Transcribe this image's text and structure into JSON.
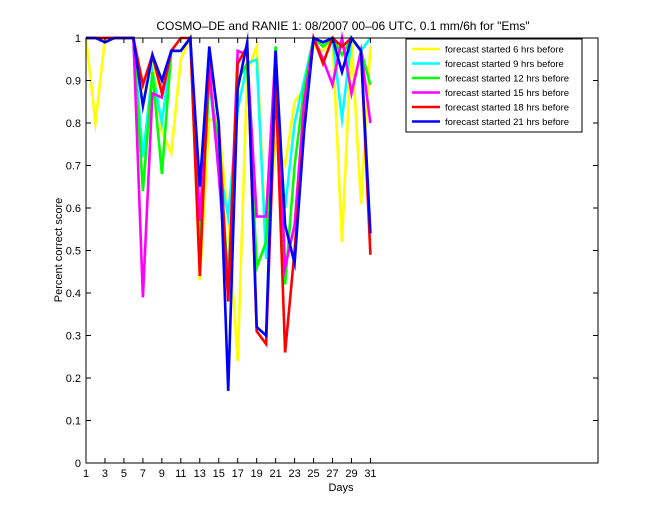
{
  "chart_data": {
    "type": "line",
    "title": "COSMO–DE and RANIE 1: 08/2007 00–06 UTC, 0.1 mm/6h for \"Ems\"",
    "xlabel": "Days",
    "ylabel": "Percent correct score",
    "xlim": [
      1,
      55
    ],
    "ylim": [
      0,
      1
    ],
    "x_ticks": [
      1,
      3,
      5,
      7,
      9,
      11,
      13,
      15,
      17,
      19,
      21,
      23,
      25,
      27,
      29,
      31
    ],
    "y_ticks": [
      0,
      0.1,
      0.2,
      0.3,
      0.4,
      0.5,
      0.6,
      0.7,
      0.8,
      0.9,
      1
    ],
    "x_tick_labels": [
      "1",
      "3",
      "5",
      "7",
      "9",
      "11",
      "13",
      "15",
      "17",
      "19",
      "21",
      "23",
      "25",
      "27",
      "29",
      "31"
    ],
    "y_tick_labels": [
      "0",
      "0.1",
      "0.2",
      "0.3",
      "0.4",
      "0.5",
      "0.6",
      "0.7",
      "0.8",
      "0.9",
      "1"
    ],
    "grid": false,
    "legend_position": "top-right",
    "x": [
      1,
      2,
      3,
      4,
      5,
      6,
      7,
      8,
      9,
      10,
      11,
      12,
      13,
      14,
      15,
      16,
      17,
      18,
      19,
      20,
      21,
      22,
      23,
      24,
      25,
      26,
      27,
      28,
      29,
      30,
      31
    ],
    "series": [
      {
        "name": "forecast started 6 hrs before",
        "color": "#ffff00",
        "values": [
          1,
          0.8,
          1,
          1,
          1,
          1,
          0.85,
          0.95,
          0.78,
          0.73,
          0.95,
          1,
          0.43,
          0.81,
          0.8,
          0.57,
          0.24,
          0.92,
          0.98,
          0.5,
          0.75,
          0.7,
          0.85,
          0.88,
          0.98,
          0.97,
          1,
          0.52,
          1,
          0.61,
          0.98
        ]
      },
      {
        "name": "forecast started 9 hrs before",
        "color": "#00ffff",
        "values": [
          1,
          1,
          1,
          1,
          1,
          1,
          0.72,
          0.92,
          0.8,
          0.97,
          0.97,
          1,
          0.5,
          0.9,
          0.7,
          0.58,
          0.83,
          0.94,
          0.95,
          0.48,
          0.87,
          0.6,
          0.8,
          0.9,
          1,
          0.99,
          1,
          0.81,
          1,
          0.97,
          1
        ]
      },
      {
        "name": "forecast started 12 hrs before",
        "color": "#00ff00",
        "values": [
          1,
          1,
          1,
          1,
          1,
          1,
          0.64,
          0.92,
          0.68,
          0.97,
          0.97,
          1,
          0.52,
          0.9,
          0.75,
          0.43,
          0.9,
          0.94,
          0.46,
          0.52,
          0.98,
          0.42,
          0.7,
          0.88,
          1,
          0.98,
          1,
          0.96,
          1,
          0.97,
          0.89
        ]
      },
      {
        "name": "forecast started 15 hrs before",
        "color": "#ff00ff",
        "values": [
          1,
          1,
          1,
          1,
          1,
          1,
          0.39,
          0.87,
          0.86,
          0.97,
          0.97,
          1,
          0.57,
          0.93,
          0.68,
          0.39,
          0.97,
          0.96,
          0.58,
          0.58,
          0.97,
          0.46,
          0.56,
          0.85,
          1,
          0.95,
          0.89,
          1,
          0.87,
          0.97,
          0.8
        ]
      },
      {
        "name": "forecast started 18 hrs before",
        "color": "#ff0000",
        "values": [
          1,
          1,
          1,
          1,
          1,
          1,
          0.89,
          0.96,
          0.87,
          0.97,
          1,
          1,
          0.44,
          0.97,
          0.8,
          0.38,
          0.94,
          0.98,
          0.31,
          0.28,
          0.9,
          0.26,
          0.5,
          0.79,
          1,
          0.94,
          1,
          0.98,
          1,
          0.97,
          0.49
        ]
      },
      {
        "name": "forecast started 21 hrs before",
        "color": "#0000ff",
        "values": [
          1,
          1,
          0.99,
          1,
          1,
          1,
          0.84,
          0.96,
          0.9,
          0.97,
          0.97,
          1,
          0.65,
          0.98,
          0.8,
          0.17,
          0.88,
          0.99,
          0.32,
          0.3,
          0.97,
          0.56,
          0.47,
          0.78,
          1,
          0.99,
          1,
          0.92,
          1,
          0.97,
          0.54
        ]
      }
    ]
  }
}
